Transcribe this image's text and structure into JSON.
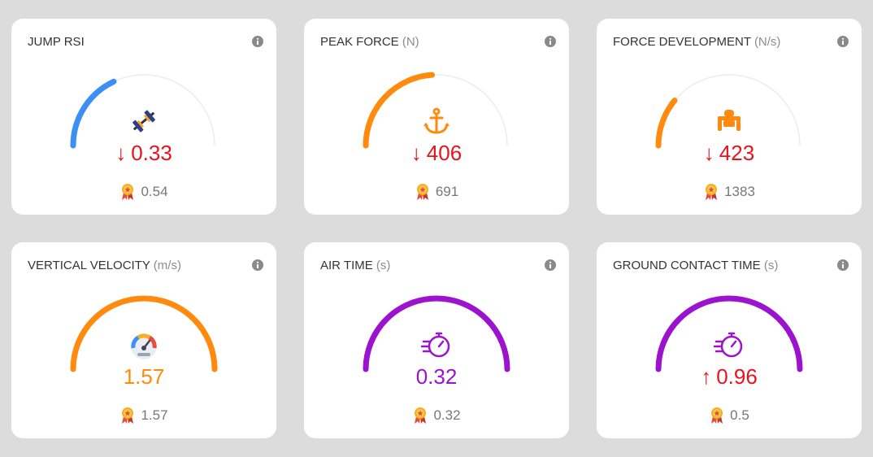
{
  "colors": {
    "down": "#e8141d",
    "up": "#e8141d",
    "blue": "#3b8ff5",
    "orange": "#ff8a0d",
    "purple": "#9b12cf",
    "track": "#ececec"
  },
  "cards": [
    {
      "title": "JUMP RSI",
      "unit": "",
      "icon": "barbell-icon",
      "arrow": "↓",
      "value": "0.33",
      "best": "0.54",
      "gauge_fraction": 0.36,
      "gauge_color": "#3b8ff5",
      "value_color": "#e8141d"
    },
    {
      "title": "PEAK FORCE",
      "unit": "(N)",
      "icon": "anchor-icon",
      "arrow": "↓",
      "value": "406",
      "best": "691",
      "gauge_fraction": 0.48,
      "gauge_color": "#ff8a0d",
      "value_color": "#e8141d"
    },
    {
      "title": "FORCE DEVELOPMENT",
      "unit": "(N/s)",
      "icon": "athlete-icon",
      "arrow": "↓",
      "value": "423",
      "best": "1383",
      "gauge_fraction": 0.22,
      "gauge_color": "#ff8a0d",
      "value_color": "#e8141d"
    },
    {
      "title": "VERTICAL VELOCITY",
      "unit": "(m/s)",
      "icon": "speedometer-icon",
      "arrow": "",
      "value": "1.57",
      "best": "1.57",
      "gauge_fraction": 1.0,
      "gauge_color": "#ff8a0d",
      "value_color": "#ff8a0d"
    },
    {
      "title": "AIR TIME",
      "unit": "(s)",
      "icon": "stopwatch-icon",
      "arrow": "",
      "value": "0.32",
      "best": "0.32",
      "gauge_fraction": 1.0,
      "gauge_color": "#9b12cf",
      "value_color": "#9b12cf"
    },
    {
      "title": "GROUND CONTACT TIME",
      "unit": "(s)",
      "icon": "stopwatch-icon",
      "arrow": "↑",
      "value": "0.96",
      "best": "0.5",
      "gauge_fraction": 1.0,
      "gauge_color": "#9b12cf",
      "value_color": "#e8141d"
    }
  ]
}
